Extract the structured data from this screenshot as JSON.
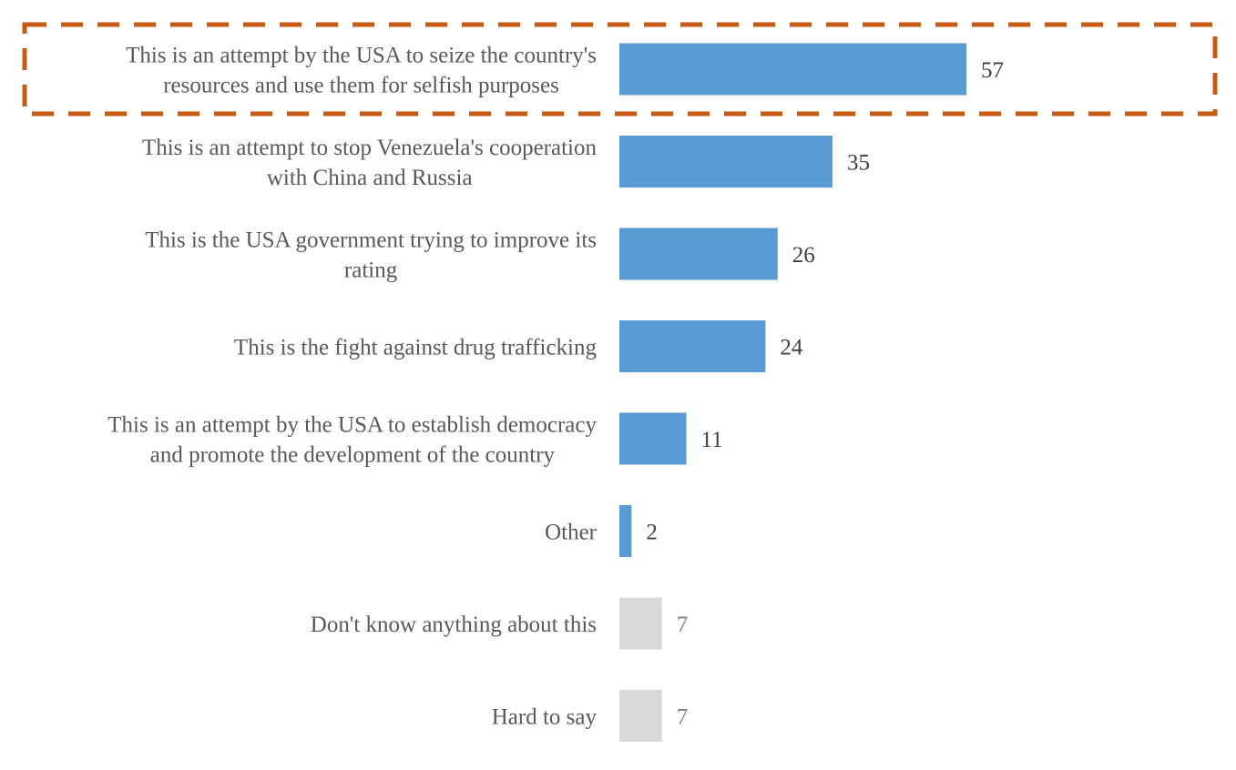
{
  "chart_data": {
    "type": "bar",
    "orientation": "horizontal",
    "title": "",
    "xlabel": "",
    "ylabel": "",
    "xlim": [
      0,
      57
    ],
    "grid": false,
    "categories": [
      [
        "This is an attempt by the USA to seize the country's",
        "resources and use them for selfish purposes"
      ],
      [
        "This is an attempt to stop Venezuela's cooperation",
        "with China and Russia"
      ],
      [
        "This is the USA government trying to improve its",
        "rating"
      ],
      [
        "This is the fight against drug trafficking"
      ],
      [
        "This is an attempt by the USA to establish democracy",
        "and promote the development of the country"
      ],
      [
        "Other"
      ],
      [
        "Don't know anything about this"
      ],
      [
        "Hard to say"
      ]
    ],
    "values": [
      57,
      35,
      26,
      24,
      11,
      2,
      7,
      7
    ],
    "value_labels": [
      "57",
      "35",
      "26",
      "24",
      "11",
      "2",
      "7",
      "7"
    ],
    "bar_colors": [
      "#5b9bd5",
      "#5b9bd5",
      "#5b9bd5",
      "#5b9bd5",
      "#5b9bd5",
      "#5b9bd5",
      "#d9d9d9",
      "#d9d9d9"
    ],
    "value_label_colors": [
      "#404040",
      "#404040",
      "#404040",
      "#404040",
      "#404040",
      "#404040",
      "#808080",
      "#808080"
    ],
    "highlight": {
      "category_index": 0,
      "style": "dashed-box",
      "color": "#c55a11"
    }
  }
}
